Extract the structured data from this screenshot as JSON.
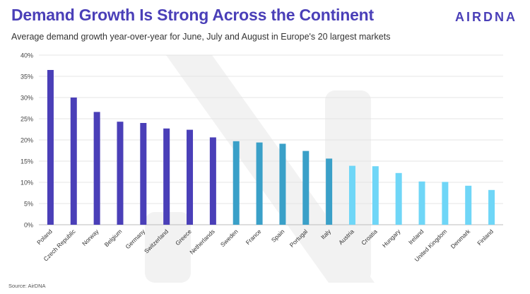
{
  "header": {
    "title": "Demand Growth Is Strong Across the Continent",
    "subtitle": "Average demand growth year-over-year for June, July and August in Europe's 20 largest markets",
    "logo": "AIRDNA"
  },
  "footer": {
    "source": "Source: AirDNA"
  },
  "colors": {
    "brand": "#4a3fb8",
    "dark": "#4a3fb8",
    "mid": "#3aa0c8",
    "light": "#6fd6f7"
  },
  "chart_data": {
    "type": "bar",
    "title": "Demand Growth Is Strong Across the Continent",
    "xlabel": "",
    "ylabel": "",
    "ylim": [
      0,
      40
    ],
    "yticks": [
      "0%",
      "5%",
      "10%",
      "15%",
      "20%",
      "25%",
      "30%",
      "35%",
      "40%"
    ],
    "grid": true,
    "categories": [
      "Poland",
      "Czech Republic",
      "Norway",
      "Belgium",
      "Germany",
      "Switzerland",
      "Greece",
      "Netherlands",
      "Sweden",
      "France",
      "Spain",
      "Portugal",
      "Italy",
      "Austria",
      "Croatia",
      "Hungary",
      "Ireland",
      "United Kingdom",
      "Denmark",
      "Finland"
    ],
    "values": [
      36.5,
      30.0,
      26.6,
      24.3,
      24.0,
      22.7,
      22.4,
      20.6,
      19.7,
      19.4,
      19.1,
      17.4,
      15.6,
      13.9,
      13.8,
      12.2,
      10.2,
      10.1,
      9.2,
      8.2
    ],
    "color_groups": [
      "dark",
      "dark",
      "dark",
      "dark",
      "dark",
      "dark",
      "dark",
      "dark",
      "mid",
      "mid",
      "mid",
      "mid",
      "mid",
      "light",
      "light",
      "light",
      "light",
      "light",
      "light",
      "light"
    ]
  }
}
